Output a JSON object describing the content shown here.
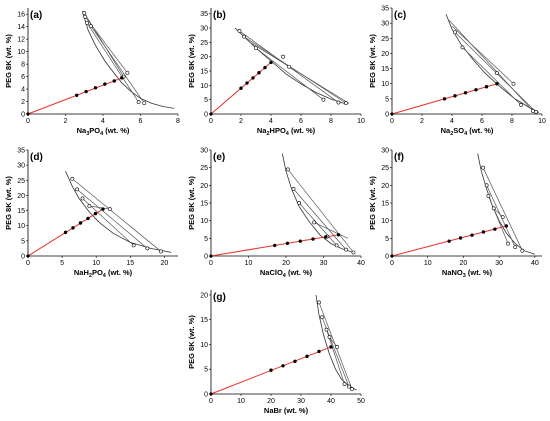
{
  "chart_data": [
    {
      "id": "a",
      "type": "scatter",
      "panel_label": "(a)",
      "xlabel": "Na3PO4 (wt. %)",
      "xlabel_main": "Na",
      "xlabel_sub": "3",
      "xlabel_tail": "PO",
      "xlabel_sub2": "4",
      "xlabel_end": " (wt. %)",
      "ylabel": "PEG 8K (wt. %)",
      "xlim": [
        0,
        8
      ],
      "ylim": [
        0,
        17
      ],
      "xticks": [
        0,
        2,
        4,
        6,
        8
      ],
      "yticks": [
        0,
        2,
        4,
        6,
        8,
        10,
        12,
        14,
        16
      ],
      "binodal": [
        [
          2.9,
          16.5
        ],
        [
          3.2,
          13.5
        ],
        [
          3.6,
          11
        ],
        [
          4.1,
          8.5
        ],
        [
          4.6,
          6.5
        ],
        [
          5.0,
          5.0
        ],
        [
          5.5,
          3.6
        ],
        [
          6.0,
          2.5
        ],
        [
          6.6,
          1.7
        ],
        [
          7.2,
          1.2
        ],
        [
          7.8,
          0.9
        ]
      ],
      "tie_lines": [
        [
          [
            3.15,
            14.6
          ],
          [
            5.9,
            1.9
          ]
        ],
        [
          [
            3.35,
            14.1
          ],
          [
            6.2,
            1.75
          ]
        ],
        [
          [
            3.05,
            15.6
          ],
          [
            5.3,
            6.6
          ]
        ],
        [
          [
            3.0,
            16.2
          ],
          [
            5.1,
            6.0
          ]
        ]
      ],
      "open_points": [
        [
          3.15,
          14.6
        ],
        [
          3.35,
          14.1
        ],
        [
          3.05,
          15.6
        ],
        [
          3.0,
          16.2
        ],
        [
          5.3,
          6.6
        ],
        [
          5.1,
          6.0
        ],
        [
          5.9,
          1.9
        ],
        [
          6.2,
          1.75
        ]
      ],
      "feed_line": [
        [
          0,
          0
        ],
        [
          5.2,
          6.0
        ]
      ],
      "feed_points": [
        [
          2.6,
          3.0
        ],
        [
          3.1,
          3.6
        ],
        [
          3.6,
          4.2
        ],
        [
          4.1,
          4.8
        ],
        [
          4.6,
          5.3
        ],
        [
          5.0,
          5.8
        ]
      ]
    },
    {
      "id": "b",
      "type": "scatter",
      "panel_label": "(b)",
      "xlabel": "Na2HPO4 (wt. %)",
      "xlabel_main": "Na",
      "xlabel_sub": "2",
      "xlabel_tail": "HPO",
      "xlabel_sub2": "4",
      "xlabel_end": " (wt. %)",
      "ylabel": "PEG 8K (wt. %)",
      "xlim": [
        0,
        10
      ],
      "ylim": [
        0,
        37
      ],
      "xticks": [
        0,
        2,
        4,
        6,
        8,
        10
      ],
      "yticks": [
        0,
        5,
        10,
        15,
        20,
        25,
        30,
        35
      ],
      "binodal": [
        [
          1.6,
          30
        ],
        [
          2.2,
          27
        ],
        [
          3.0,
          23
        ],
        [
          4.0,
          18.5
        ],
        [
          5.0,
          14
        ],
        [
          6.0,
          10.5
        ],
        [
          7.0,
          7.5
        ],
        [
          8.0,
          5.2
        ],
        [
          9.0,
          3.5
        ]
      ],
      "tie_lines": [
        [
          [
            1.9,
            29
          ],
          [
            8.5,
            4.0
          ]
        ],
        [
          [
            2.2,
            27
          ],
          [
            9.0,
            3.8
          ]
        ],
        [
          [
            3.0,
            23
          ],
          [
            7.5,
            5.0
          ]
        ],
        [
          [
            2.6,
            25
          ],
          [
            9.2,
            3.7
          ]
        ]
      ],
      "open_points": [
        [
          1.9,
          29
        ],
        [
          2.2,
          27
        ],
        [
          3.0,
          23
        ],
        [
          5.2,
          16.5
        ],
        [
          4.8,
          20
        ],
        [
          8.5,
          4.0
        ],
        [
          9.0,
          3.8
        ],
        [
          7.5,
          5.0
        ]
      ],
      "feed_line": [
        [
          0,
          0
        ],
        [
          4.0,
          18
        ]
      ],
      "feed_points": [
        [
          2.0,
          9.0
        ],
        [
          2.4,
          10.8
        ],
        [
          2.8,
          12.6
        ],
        [
          3.2,
          14.4
        ],
        [
          3.6,
          16.2
        ],
        [
          4.0,
          18.0
        ]
      ]
    },
    {
      "id": "c",
      "type": "scatter",
      "panel_label": "(c)",
      "xlabel": "Na2SO4 (wt. %)",
      "xlabel_main": "Na",
      "xlabel_sub": "2",
      "xlabel_tail": "SO",
      "xlabel_sub2": "4",
      "xlabel_end": " (wt. %)",
      "ylabel": "PEG 8K (wt. %)",
      "xlim": [
        0,
        10
      ],
      "ylim": [
        0,
        35
      ],
      "xticks": [
        0,
        2,
        4,
        6,
        8,
        10
      ],
      "yticks": [
        0,
        5,
        10,
        15,
        20,
        25,
        30,
        35
      ],
      "binodal": [
        [
          3.6,
          33
        ],
        [
          4.0,
          28
        ],
        [
          4.6,
          23
        ],
        [
          5.4,
          18
        ],
        [
          6.2,
          13.5
        ],
        [
          7.2,
          9.0
        ],
        [
          8.2,
          5.0
        ],
        [
          9.2,
          2.0
        ],
        [
          9.8,
          0.5
        ]
      ],
      "tie_lines": [
        [
          [
            3.8,
            31
          ],
          [
            9.4,
            1.0
          ]
        ],
        [
          [
            4.2,
            27
          ],
          [
            9.6,
            0.7
          ]
        ],
        [
          [
            4.7,
            22
          ],
          [
            8.6,
            3.0
          ]
        ],
        [
          [
            4.0,
            29
          ],
          [
            8.1,
            10
          ]
        ]
      ],
      "open_points": [
        [
          4.2,
          27
        ],
        [
          4.7,
          22
        ],
        [
          7.0,
          13.5
        ],
        [
          8.1,
          10
        ],
        [
          8.6,
          3.0
        ],
        [
          9.4,
          1.0
        ],
        [
          9.6,
          0.7
        ]
      ],
      "feed_line": [
        [
          0,
          0
        ],
        [
          7.0,
          10
        ]
      ],
      "feed_points": [
        [
          3.5,
          5.0
        ],
        [
          4.2,
          6.0
        ],
        [
          4.9,
          7.0
        ],
        [
          5.6,
          8.0
        ],
        [
          6.3,
          9.0
        ],
        [
          7.0,
          10.0
        ]
      ]
    },
    {
      "id": "d",
      "type": "scatter",
      "panel_label": "(d)",
      "xlabel": "NaH2PO4 (wt. %)",
      "xlabel_main": "NaH",
      "xlabel_sub": "2",
      "xlabel_tail": "PO",
      "xlabel_sub2": "4",
      "xlabel_end": " (wt. %)",
      "ylabel": "PEG 8K (wt. %)",
      "xlim": [
        0,
        22
      ],
      "ylim": [
        0,
        35
      ],
      "xticks": [
        0,
        5,
        10,
        15,
        20
      ],
      "yticks": [
        0,
        5,
        10,
        15,
        20,
        25,
        30,
        35
      ],
      "binodal": [
        [
          5.5,
          28
        ],
        [
          6.5,
          23
        ],
        [
          7.5,
          19
        ],
        [
          9.0,
          14.5
        ],
        [
          10.5,
          11
        ],
        [
          12.5,
          7.5
        ],
        [
          15.0,
          4.5
        ],
        [
          18.0,
          2.5
        ],
        [
          21.0,
          1.2
        ]
      ],
      "tie_lines": [
        [
          [
            6.5,
            25.5
          ],
          [
            19.5,
            1.5
          ]
        ],
        [
          [
            7.2,
            22
          ],
          [
            17.5,
            2.5
          ]
        ],
        [
          [
            8.0,
            19
          ],
          [
            15.5,
            3.5
          ]
        ],
        [
          [
            9.0,
            16.5
          ],
          [
            12.0,
            15.5
          ]
        ]
      ],
      "open_points": [
        [
          6.5,
          25.5
        ],
        [
          7.2,
          22
        ],
        [
          8.0,
          19
        ],
        [
          9.0,
          16.5
        ],
        [
          12.0,
          15.5
        ],
        [
          15.5,
          3.5
        ],
        [
          17.5,
          2.5
        ],
        [
          19.5,
          1.5
        ]
      ],
      "feed_line": [
        [
          0,
          0
        ],
        [
          11.0,
          15.5
        ]
      ],
      "feed_points": [
        [
          5.5,
          7.8
        ],
        [
          6.6,
          9.3
        ],
        [
          7.7,
          10.9
        ],
        [
          8.8,
          12.4
        ],
        [
          9.9,
          14.0
        ],
        [
          11.0,
          15.5
        ]
      ]
    },
    {
      "id": "e",
      "type": "scatter",
      "panel_label": "(e)",
      "xlabel": "NaClO4 (wt. %)",
      "xlabel_main": "NaClO",
      "xlabel_sub": "4",
      "xlabel_tail": "",
      "xlabel_sub2": "",
      "xlabel_end": " (wt. %)",
      "ylabel": "PEG 8K (wt. %)",
      "xlim": [
        0,
        40
      ],
      "ylim": [
        0,
        30
      ],
      "xticks": [
        0,
        10,
        20,
        30,
        40
      ],
      "yticks": [
        0,
        5,
        10,
        15,
        20,
        25,
        30
      ],
      "binodal": [
        [
          19,
          29
        ],
        [
          20,
          24
        ],
        [
          21.5,
          19
        ],
        [
          23.5,
          14
        ],
        [
          26,
          10
        ],
        [
          29,
          6
        ],
        [
          32,
          3.5
        ],
        [
          35,
          2.0
        ],
        [
          38,
          1.0
        ]
      ],
      "tie_lines": [
        [
          [
            20.5,
            24.5
          ],
          [
            38,
            1.0
          ]
        ],
        [
          [
            22,
            19
          ],
          [
            36,
            1.8
          ]
        ],
        [
          [
            23.5,
            15
          ],
          [
            33.5,
            3.0
          ]
        ],
        [
          [
            27.5,
            9.5
          ],
          [
            36.5,
            5.0
          ]
        ]
      ],
      "open_points": [
        [
          20.5,
          24.5
        ],
        [
          22,
          19
        ],
        [
          23.5,
          15
        ],
        [
          27.5,
          9.5
        ],
        [
          31,
          5.5
        ],
        [
          33.5,
          3.0
        ],
        [
          36,
          1.8
        ],
        [
          38,
          1.0
        ]
      ],
      "feed_line": [
        [
          0,
          0
        ],
        [
          34,
          6
        ]
      ],
      "feed_points": [
        [
          17,
          3.0
        ],
        [
          20.4,
          3.6
        ],
        [
          23.8,
          4.2
        ],
        [
          27.2,
          4.8
        ],
        [
          30.6,
          5.4
        ],
        [
          34,
          6.0
        ]
      ]
    },
    {
      "id": "f",
      "type": "scatter",
      "panel_label": "(f)",
      "xlabel": "NaNO3 (wt. %)",
      "xlabel_main": "NaNO",
      "xlabel_sub": "3",
      "xlabel_tail": "",
      "xlabel_sub2": "",
      "xlabel_end": " (wt. %)",
      "ylabel": "PEG 8K (wt. %)",
      "xlim": [
        0,
        42
      ],
      "ylim": [
        0,
        30
      ],
      "xticks": [
        0,
        10,
        20,
        30,
        40
      ],
      "yticks": [
        0,
        5,
        10,
        15,
        20,
        25,
        30
      ],
      "binodal": [
        [
          24,
          29
        ],
        [
          25,
          24
        ],
        [
          26.5,
          19
        ],
        [
          28,
          14.5
        ],
        [
          30,
          10
        ],
        [
          32,
          6.5
        ],
        [
          34.5,
          3.5
        ],
        [
          37,
          1.5
        ],
        [
          40,
          0.5
        ]
      ],
      "tie_lines": [
        [
          [
            25.5,
            25
          ],
          [
            36.5,
            1.5
          ]
        ],
        [
          [
            26.5,
            20
          ],
          [
            34.5,
            2.5
          ]
        ],
        [
          [
            27,
            17
          ],
          [
            32.5,
            3.5
          ]
        ],
        [
          [
            28.5,
            13.5
          ],
          [
            31,
            11
          ]
        ]
      ],
      "open_points": [
        [
          25.5,
          25
        ],
        [
          26.5,
          20
        ],
        [
          27,
          17
        ],
        [
          28.5,
          13.5
        ],
        [
          31,
          11
        ],
        [
          32.5,
          3.5
        ],
        [
          34.5,
          2.5
        ],
        [
          36.5,
          1.5
        ]
      ],
      "feed_line": [
        [
          0,
          0
        ],
        [
          32,
          8.5
        ]
      ],
      "feed_points": [
        [
          16,
          4.2
        ],
        [
          19.2,
          5.1
        ],
        [
          22.4,
          5.9
        ],
        [
          25.6,
          6.8
        ],
        [
          28.8,
          7.6
        ],
        [
          32,
          8.5
        ]
      ]
    },
    {
      "id": "g",
      "type": "scatter",
      "panel_label": "(g)",
      "xlabel": "NaBr (wt. %)",
      "xlabel_main": "NaBr",
      "xlabel_sub": "",
      "xlabel_tail": "",
      "xlabel_sub2": "",
      "xlabel_end": " (wt. %)",
      "ylabel": "PEG 8K (wt. %)",
      "xlim": [
        0,
        50
      ],
      "ylim": [
        0,
        21
      ],
      "xticks": [
        0,
        10,
        20,
        30,
        40,
        50
      ],
      "yticks": [
        0,
        5,
        10,
        15,
        20
      ],
      "binodal": [
        [
          35,
          20
        ],
        [
          36,
          16
        ],
        [
          37.5,
          12
        ],
        [
          39.5,
          8
        ],
        [
          41.5,
          5
        ],
        [
          43.5,
          3
        ],
        [
          46,
          1.6
        ],
        [
          48.5,
          0.8
        ]
      ],
      "tie_lines": [
        [
          [
            36,
            18.5
          ],
          [
            47,
            1.0
          ]
        ],
        [
          [
            37,
            15.5
          ],
          [
            46,
            1.5
          ]
        ],
        [
          [
            38.5,
            13
          ],
          [
            44.5,
            2.0
          ]
        ],
        [
          [
            39.5,
            11.5
          ],
          [
            42,
            9.5
          ]
        ]
      ],
      "open_points": [
        [
          36,
          18.5
        ],
        [
          37,
          15.5
        ],
        [
          38.5,
          13
        ],
        [
          39.5,
          11.5
        ],
        [
          42,
          9.5
        ],
        [
          44.5,
          2.0
        ],
        [
          46,
          1.5
        ],
        [
          47,
          1.0
        ]
      ],
      "feed_line": [
        [
          0,
          0
        ],
        [
          40,
          9.5
        ]
      ],
      "feed_points": [
        [
          20,
          4.8
        ],
        [
          24,
          5.7
        ],
        [
          28,
          6.6
        ],
        [
          32,
          7.6
        ],
        [
          36,
          8.6
        ],
        [
          40,
          9.5
        ]
      ]
    }
  ],
  "colors": {
    "feed_line": "#e8302a",
    "axis": "#000000",
    "curve": "#333333",
    "tie": "#555555"
  }
}
